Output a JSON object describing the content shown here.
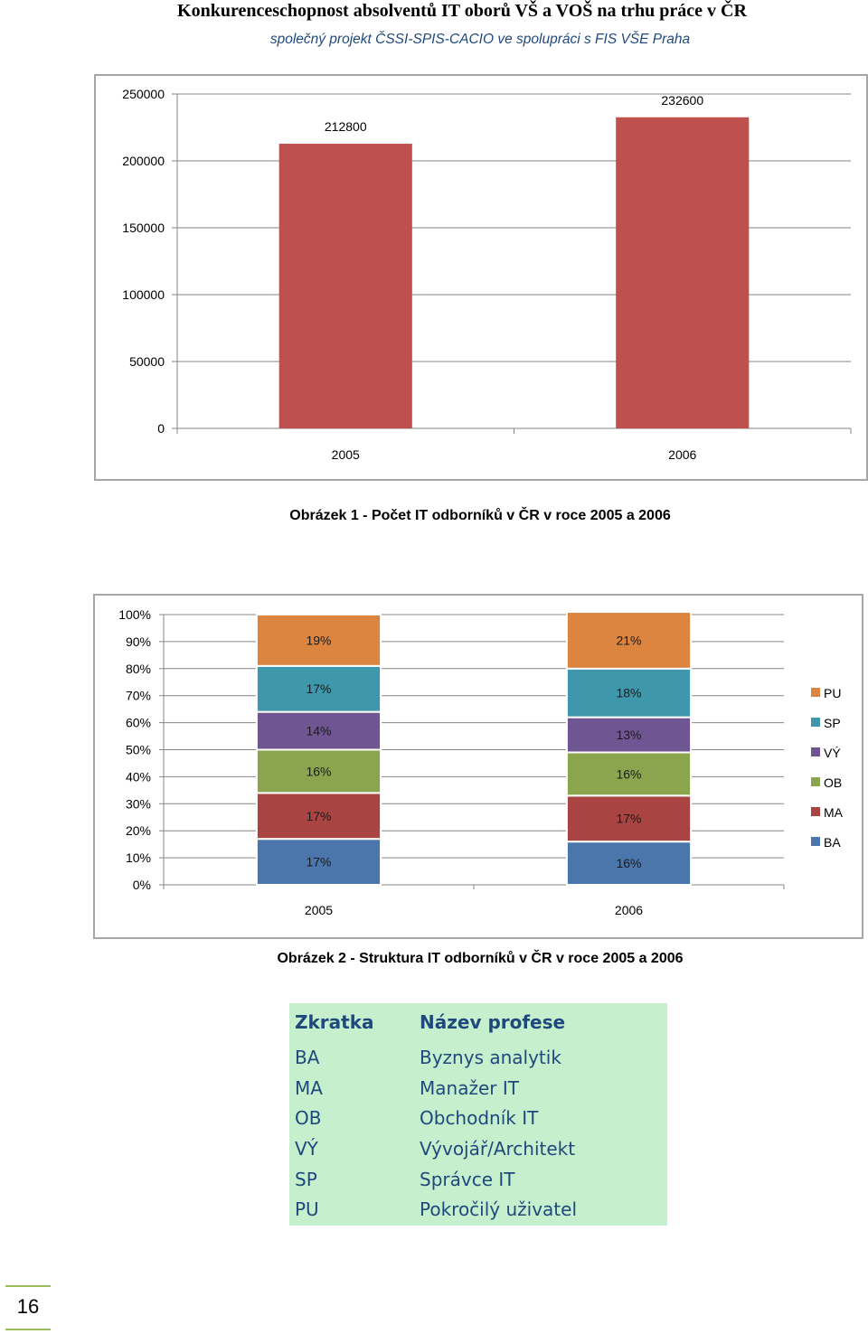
{
  "document": {
    "title": "Konkurenceschopnost absolventů IT oborů VŠ a VOŠ na trhu práce v ČR",
    "subtitle": "společný projekt ČSSI-SPIS-CACIO ve spolupráci s FIS VŠE Praha",
    "subtitle_color": "#1f497d",
    "page_number": "16",
    "accent_color": "#9bbb59"
  },
  "figure1": {
    "caption": "Obrázek 1 - Počet IT odborníků v ČR v roce 2005 a 2006",
    "chart_data": {
      "type": "bar",
      "categories": [
        "2005",
        "2006"
      ],
      "values": [
        212800,
        232600
      ],
      "data_labels": [
        "212800",
        "232600"
      ],
      "ylim": [
        0,
        250000
      ],
      "yticks": [
        "0",
        "50000",
        "100000",
        "150000",
        "200000",
        "250000"
      ],
      "grid": true,
      "bar_color": "#c0504d"
    }
  },
  "figure2": {
    "caption": "Obrázek 2 - Struktura IT odborníků v ČR v roce 2005 a 2006",
    "chart_data": {
      "type": "bar",
      "stacked": true,
      "categories": [
        "2005",
        "2006"
      ],
      "ylim": [
        0,
        100
      ],
      "yticks": [
        "0%",
        "10%",
        "20%",
        "30%",
        "40%",
        "50%",
        "60%",
        "70%",
        "80%",
        "90%",
        "100%"
      ],
      "legend_position": "right",
      "grid": true,
      "series": [
        {
          "name": "BA",
          "values": [
            17,
            16
          ],
          "labels": [
            "17%",
            "16%"
          ],
          "color": "#4a76ab"
        },
        {
          "name": "MA",
          "values": [
            17,
            17
          ],
          "labels": [
            "17%",
            "17%"
          ],
          "color": "#a94442"
        },
        {
          "name": "OB",
          "values": [
            16,
            16
          ],
          "labels": [
            "16%",
            "16%"
          ],
          "color": "#8aa54e"
        },
        {
          "name": "VÝ",
          "values": [
            14,
            13
          ],
          "labels": [
            "14%",
            "13%"
          ],
          "color": "#6f5692"
        },
        {
          "name": "SP",
          "values": [
            17,
            18
          ],
          "labels": [
            "17%",
            "18%"
          ],
          "color": "#3f97ac"
        },
        {
          "name": "PU",
          "values": [
            19,
            21
          ],
          "labels": [
            "19%",
            "21%"
          ],
          "color": "#db8540"
        }
      ]
    }
  },
  "abbreviations": {
    "header": {
      "abbr": "Zkratka",
      "name": "Název profese"
    },
    "rows": [
      {
        "abbr": "BA",
        "name": "Byznys analytik"
      },
      {
        "abbr": "MA",
        "name": "Manažer IT"
      },
      {
        "abbr": "OB",
        "name": "Obchodník IT"
      },
      {
        "abbr": "VÝ",
        "name": "Vývojář/Architekt"
      },
      {
        "abbr": "SP",
        "name": "Správce IT"
      },
      {
        "abbr": "PU",
        "name": "Pokročilý uživatel"
      }
    ],
    "background_color": "#c6efce",
    "text_color": "#1f497d"
  }
}
